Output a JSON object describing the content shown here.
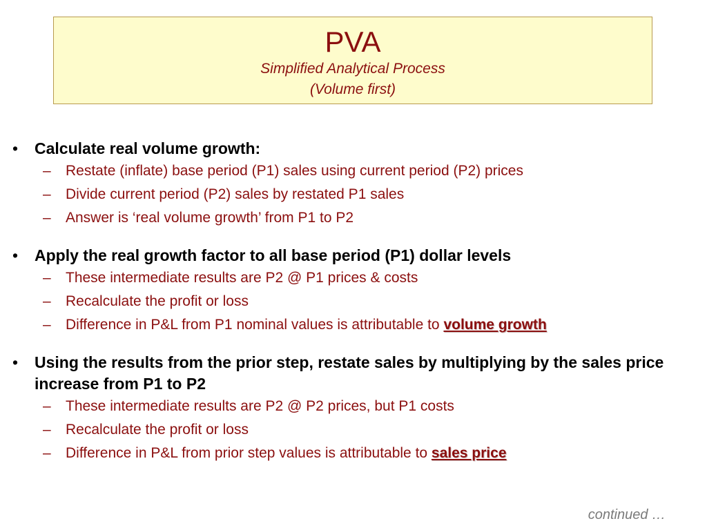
{
  "header": {
    "title": "PVA",
    "subtitle_line1": "Simplified Analytical Process",
    "subtitle_line2": "(Volume first)"
  },
  "bullet_glyph": "•",
  "dash_glyph": "–",
  "bullets": [
    {
      "text": "Calculate real volume growth:",
      "subs": [
        {
          "text": "Restate (inflate) base period (P1) sales using current period (P2) prices"
        },
        {
          "text": "Divide current period (P2) sales by restated P1 sales"
        },
        {
          "text": "Answer is ‘real volume growth’ from P1 to P2"
        }
      ]
    },
    {
      "text": "Apply the real growth factor to all base period (P1) dollar levels",
      "subs": [
        {
          "text": "These intermediate results are P2 @ P1 prices & costs"
        },
        {
          "text": "Recalculate the profit or loss"
        },
        {
          "text": "Difference in P&L from P1 nominal values is attributable to ",
          "highlight": "volume growth"
        }
      ]
    },
    {
      "text": "Using the results from the prior step, restate sales by multiplying by the sales price increase from P1 to P2",
      "subs": [
        {
          "text": "These intermediate results are P2 @ P2 prices, but P1 costs"
        },
        {
          "text": "Recalculate the profit or loss"
        },
        {
          "text": "Difference in P&L from prior step values is attributable to ",
          "highlight": "sales price"
        }
      ]
    }
  ],
  "footer": {
    "continued": "continued …"
  },
  "colors": {
    "accent": "#8b0f0f",
    "title_fill": "#fefccc",
    "title_border": "#b89a4e"
  }
}
